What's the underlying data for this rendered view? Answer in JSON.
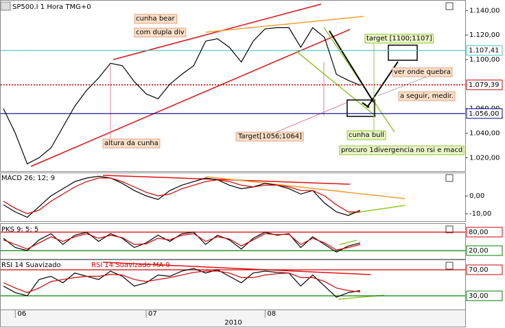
{
  "window": {
    "title": "SP500.I 1 Hora TMG+0"
  },
  "chart_data": [
    {
      "type": "line",
      "title": "SP500.I 1 Hora TMG+0",
      "categories": [
        null,
        "06",
        null,
        null,
        null,
        null,
        null,
        null,
        null,
        null,
        null,
        null,
        "07",
        null,
        null,
        null,
        null,
        null,
        null,
        null,
        null,
        null,
        "08",
        null,
        null,
        null,
        null,
        null,
        null,
        null,
        null
      ],
      "year": "2010",
      "series": [
        {
          "color": "#000000",
          "values": [
            1060,
            1040,
            1015,
            1020,
            1028,
            1045,
            1062,
            1075,
            1085,
            1097,
            1095,
            1082,
            1072,
            1068,
            1080,
            1088,
            1095,
            1115,
            1117,
            1110,
            1098,
            1115,
            1125,
            1126,
            1126,
            1110,
            1126,
            1118,
            1088,
            1083,
            1079
          ]
        }
      ],
      "ylim": [
        1009,
        1148
      ],
      "yticks": [
        {
          "value": 1140,
          "label": "1.140,00"
        },
        {
          "value": 1120,
          "label": "1.120,00"
        },
        {
          "value": 1100,
          "label": "1.100,00"
        },
        {
          "value": 1060,
          "label": "1.060,00"
        },
        {
          "value": 1040,
          "label": "1.040,00"
        },
        {
          "value": 1020,
          "label": "1.020,00"
        }
      ],
      "hlines": [
        {
          "value": 1107.41,
          "label": "1.107,41",
          "color": "#40c8c8",
          "style": "solid"
        },
        {
          "value": 1079.39,
          "label": "1.079,39",
          "color": "#c00000",
          "style": "dotted"
        },
        {
          "value": 1056,
          "label": "1.056,00",
          "color": "#000090",
          "style": "solid"
        }
      ],
      "annotations": [
        "cunha bear",
        "com dupla div",
        "altura da cunha",
        "Target[1056;1064]",
        "target [1100;1107]",
        "ver onde quebra",
        "a seguir, medir.",
        "cunha bull",
        "procuro 1divergencia no rsi e macd"
      ]
    },
    {
      "type": "line",
      "title": "MACD 26; 12; 9",
      "series": [
        {
          "color": "#000000",
          "values": [
            -5,
            -9,
            -12,
            -6,
            0,
            4,
            8,
            10,
            11,
            10,
            7,
            3,
            0,
            -2,
            3,
            6,
            8,
            10,
            9,
            6,
            4,
            5,
            7,
            6,
            4,
            1,
            3,
            -4,
            -9,
            -11,
            -8
          ]
        },
        {
          "color": "#d00000",
          "values": [
            -3,
            -7,
            -10,
            -8,
            -3,
            1,
            5,
            8,
            10,
            10,
            8,
            5,
            2,
            0,
            1,
            4,
            6,
            8,
            9,
            8,
            6,
            5,
            6,
            6,
            5,
            3,
            3,
            0,
            -5,
            -9,
            -9
          ]
        }
      ],
      "ylim": [
        -14.2,
        12.7
      ],
      "yticks": [
        {
          "value": 0,
          "label": "0,00"
        },
        {
          "value": -10,
          "label": "-10,00"
        }
      ],
      "hlines": []
    },
    {
      "type": "line",
      "title": "PKS 9; 5; 5",
      "series": [
        {
          "color": "#000000",
          "values": [
            60,
            30,
            20,
            55,
            75,
            40,
            70,
            80,
            50,
            75,
            60,
            30,
            45,
            70,
            50,
            75,
            80,
            40,
            70,
            55,
            25,
            60,
            80,
            70,
            75,
            30,
            65,
            40,
            15,
            35,
            45
          ]
        },
        {
          "color": "#d00000",
          "values": [
            55,
            40,
            25,
            45,
            65,
            50,
            65,
            75,
            60,
            70,
            62,
            40,
            42,
            60,
            55,
            70,
            75,
            50,
            65,
            58,
            35,
            55,
            75,
            72,
            73,
            40,
            60,
            45,
            22,
            30,
            40
          ]
        }
      ],
      "ylim": [
        -6.7,
        106.7
      ],
      "yticks": [],
      "hlines": [
        {
          "value": 80,
          "label": "80,00",
          "color": "#d00000",
          "style": "solid"
        },
        {
          "value": 20,
          "label": "20,00",
          "color": "#008000",
          "style": "solid"
        }
      ]
    },
    {
      "type": "line",
      "title": "RSI 14 Suavizado",
      "title2": "RSI 14 Suavizado MA 9",
      "series": [
        {
          "color": "#000000",
          "values": [
            45,
            35,
            30,
            55,
            60,
            50,
            65,
            60,
            55,
            68,
            60,
            45,
            50,
            62,
            60,
            68,
            72,
            65,
            70,
            60,
            50,
            65,
            68,
            66,
            65,
            45,
            62,
            45,
            28,
            35,
            38
          ]
        },
        {
          "color": "#d00000",
          "values": [
            50,
            42,
            35,
            42,
            52,
            55,
            58,
            60,
            60,
            63,
            62,
            55,
            52,
            55,
            58,
            62,
            66,
            68,
            68,
            65,
            58,
            58,
            62,
            64,
            65,
            58,
            58,
            52,
            42,
            38,
            36
          ]
        }
      ],
      "ylim": [
        9,
        84.7
      ],
      "yticks": [],
      "hlines": [
        {
          "value": 70,
          "label": "70,00",
          "color": "#d00000",
          "style": "solid"
        },
        {
          "value": 30,
          "label": "30,00",
          "color": "#008000",
          "style": "solid"
        }
      ]
    }
  ]
}
